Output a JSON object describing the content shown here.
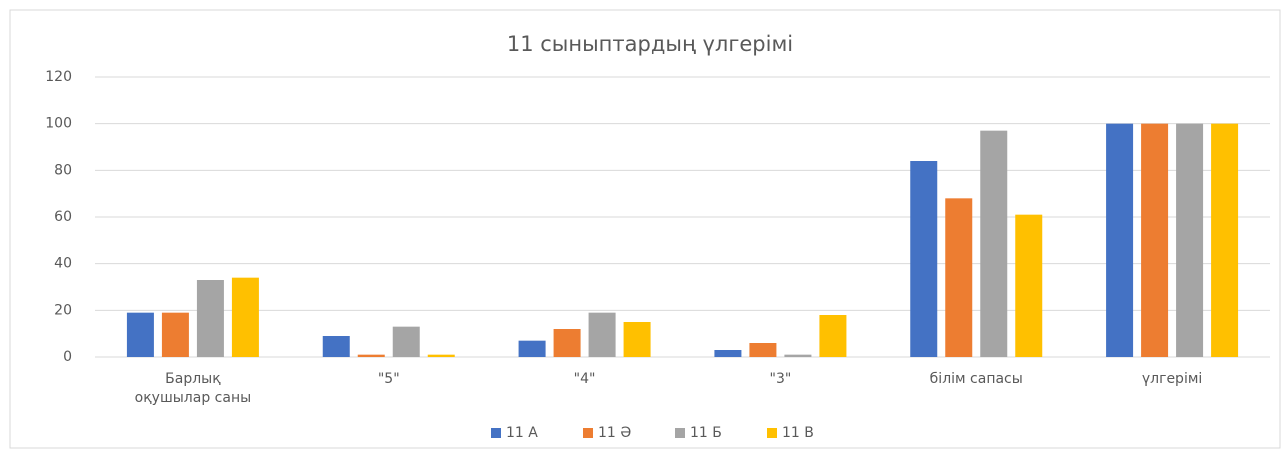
{
  "chart_data": {
    "type": "bar",
    "title": "11 сыныптардың үлгерімі",
    "categories": [
      "Барлық оқушылар саны",
      "\"5\"",
      "\"4\"",
      "\"3\"",
      "білім сапасы",
      "үлгерімі"
    ],
    "series": [
      {
        "name": "11 А",
        "color": "#4472c4",
        "values": [
          19,
          9,
          7,
          3,
          84,
          100
        ]
      },
      {
        "name": "11 Ә",
        "color": "#ed7d31",
        "values": [
          19,
          1,
          12,
          6,
          68,
          100
        ]
      },
      {
        "name": "11 Б",
        "color": "#a5a5a5",
        "values": [
          33,
          13,
          19,
          1,
          97,
          100
        ]
      },
      {
        "name": "11 В",
        "color": "#ffc000",
        "values": [
          34,
          1,
          15,
          18,
          61,
          100
        ]
      }
    ],
    "ylim": [
      0,
      120
    ],
    "yticks": [
      0,
      20,
      40,
      60,
      80,
      100,
      120
    ],
    "grid": true,
    "legend": "bottom"
  }
}
